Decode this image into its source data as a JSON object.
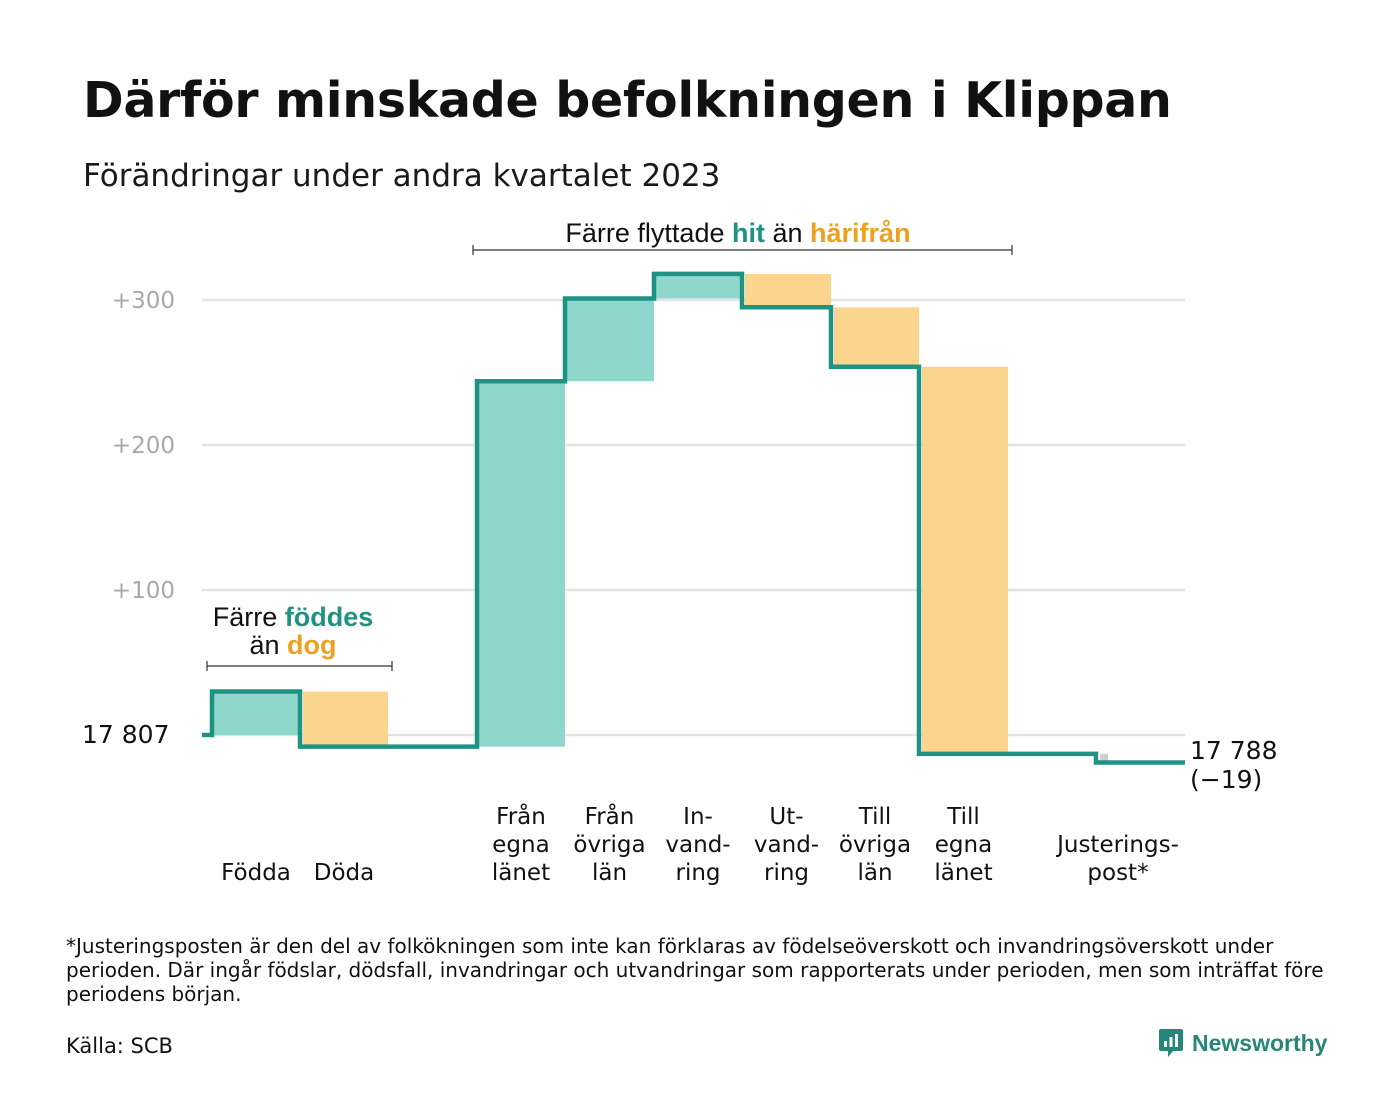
{
  "header": {
    "title": "Därför minskade befolkningen i Klippan",
    "subtitle": "Förändringar under andra kvartalet 2023"
  },
  "annotations": {
    "births": {
      "prefix": "Färre ",
      "hit": "föddes",
      "mid": "än ",
      "away": "dog"
    },
    "migration": {
      "prefix": "Färre flyttade ",
      "hit": "hit",
      "mid": " än ",
      "away": "härifrån"
    }
  },
  "colors": {
    "teal_line": "#1e9384",
    "teal_fill": "#8fd6cc",
    "orange_fill": "#fbd58e",
    "orange_text": "#f0a020",
    "teal_text": "#1e9384",
    "gray_fill": "#cfcfcf",
    "grid": "#e3e3e3"
  },
  "chart_data": {
    "type": "waterfall",
    "start_label": "17  807",
    "start_value": 0,
    "end_label": "17 788",
    "end_change": "(−19)",
    "y_tick_labels": [
      "+100",
      "+200",
      "+300"
    ],
    "y_ticks": [
      100,
      200,
      300
    ],
    "ylim": [
      -30,
      330
    ],
    "steps": [
      {
        "label": [
          "Födda"
        ],
        "change": 30,
        "type": "increase"
      },
      {
        "label": [
          "Döda"
        ],
        "change": -38,
        "type": "decrease"
      },
      {
        "label": [
          "Från",
          "egna",
          "länet"
        ],
        "change": 252,
        "type": "increase"
      },
      {
        "label": [
          "Från",
          "övriga",
          "län"
        ],
        "change": 57,
        "type": "increase"
      },
      {
        "label": [
          "In-",
          "vand-",
          "ring"
        ],
        "change": 17,
        "type": "increase"
      },
      {
        "label": [
          "Ut-",
          "vand-",
          "ring"
        ],
        "change": -23,
        "type": "decrease"
      },
      {
        "label": [
          "Till",
          "övriga",
          "län"
        ],
        "change": -41,
        "type": "decrease"
      },
      {
        "label": [
          "Till",
          "egna",
          "länet"
        ],
        "change": -267,
        "type": "decrease"
      },
      {
        "label": [
          "Justerings-",
          "post*"
        ],
        "change": -6,
        "type": "adjustment"
      }
    ]
  },
  "footer": {
    "footnote": "*Justeringsposten är den del av folkökningen som inte kan förklaras av födelseöverskott och invandringsöverskott under perioden. Där ingår födslar, dödsfall, invandringar och utvandringar som rapporterats under perioden, men som inträffat före periodens början.",
    "source": "Källa: SCB",
    "brand": "Newsworthy",
    "brand_icon": "newsworthy-logo-icon"
  }
}
